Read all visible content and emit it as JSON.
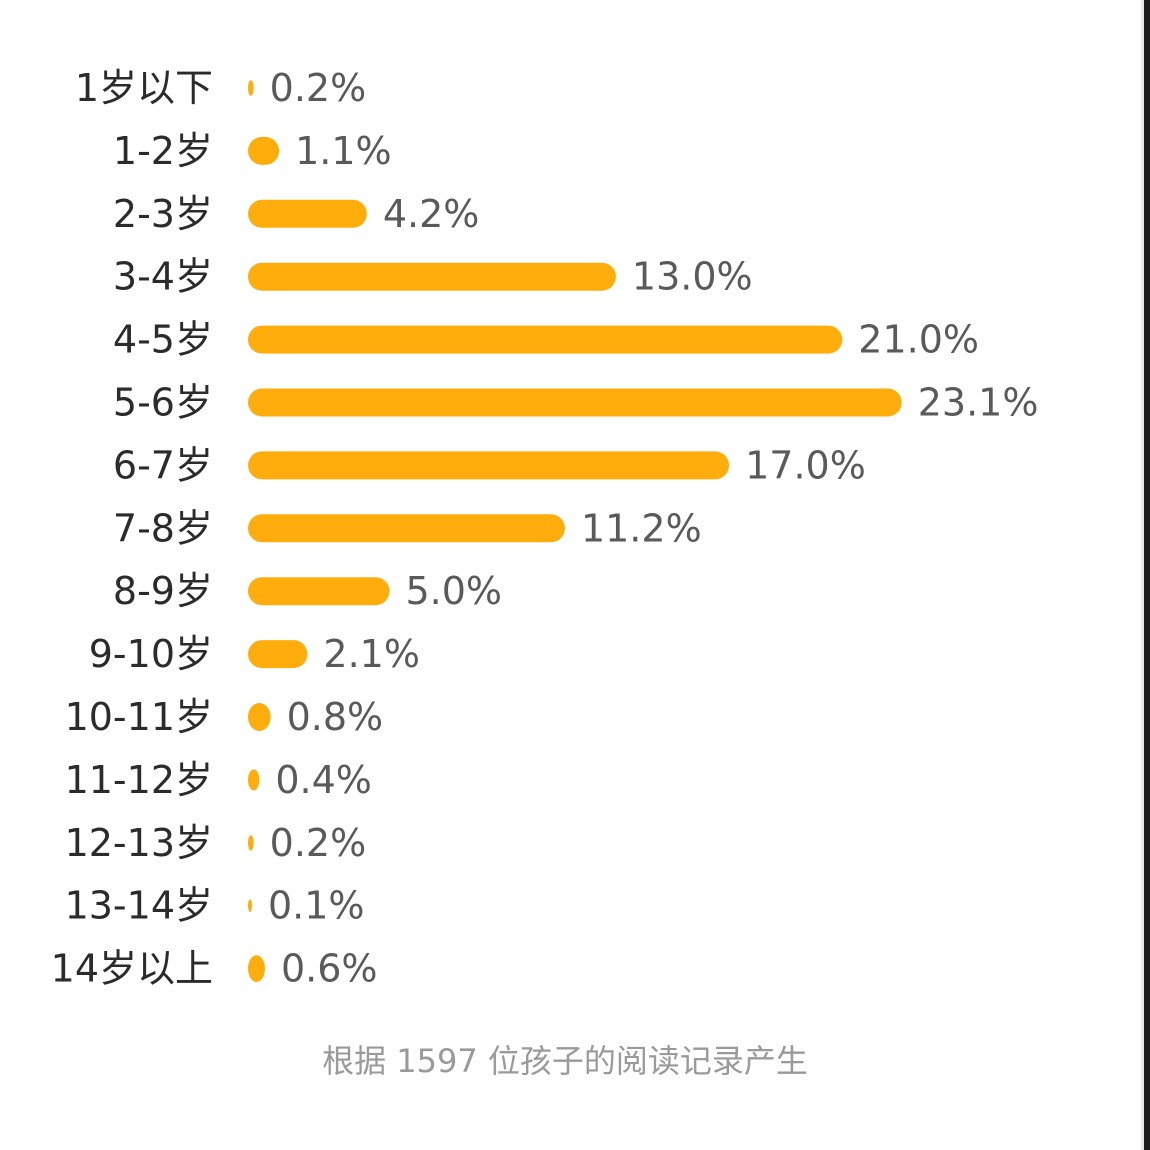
{
  "chart_data": {
    "type": "bar",
    "orientation": "horizontal",
    "categories": [
      "1岁以下",
      "1-2岁",
      "2-3岁",
      "3-4岁",
      "4-5岁",
      "5-6岁",
      "6-7岁",
      "7-8岁",
      "8-9岁",
      "9-10岁",
      "10-11岁",
      "11-12岁",
      "12-13岁",
      "13-14岁",
      "14岁以上"
    ],
    "values": [
      0.2,
      1.1,
      4.2,
      13.0,
      21.0,
      23.1,
      17.0,
      11.2,
      5.0,
      2.1,
      0.8,
      0.4,
      0.2,
      0.1,
      0.6
    ],
    "value_labels": [
      "0.2%",
      "1.1%",
      "4.2%",
      "13.0%",
      "21.0%",
      "23.1%",
      "17.0%",
      "11.2%",
      "5.0%",
      "2.1%",
      "0.8%",
      "0.4%",
      "0.2%",
      "0.1%",
      "0.6%"
    ],
    "bar_color": "#FFAD0D",
    "grid": false,
    "legend": "none"
  },
  "footnote": "根据 1597 位孩子的阅读记录产生"
}
